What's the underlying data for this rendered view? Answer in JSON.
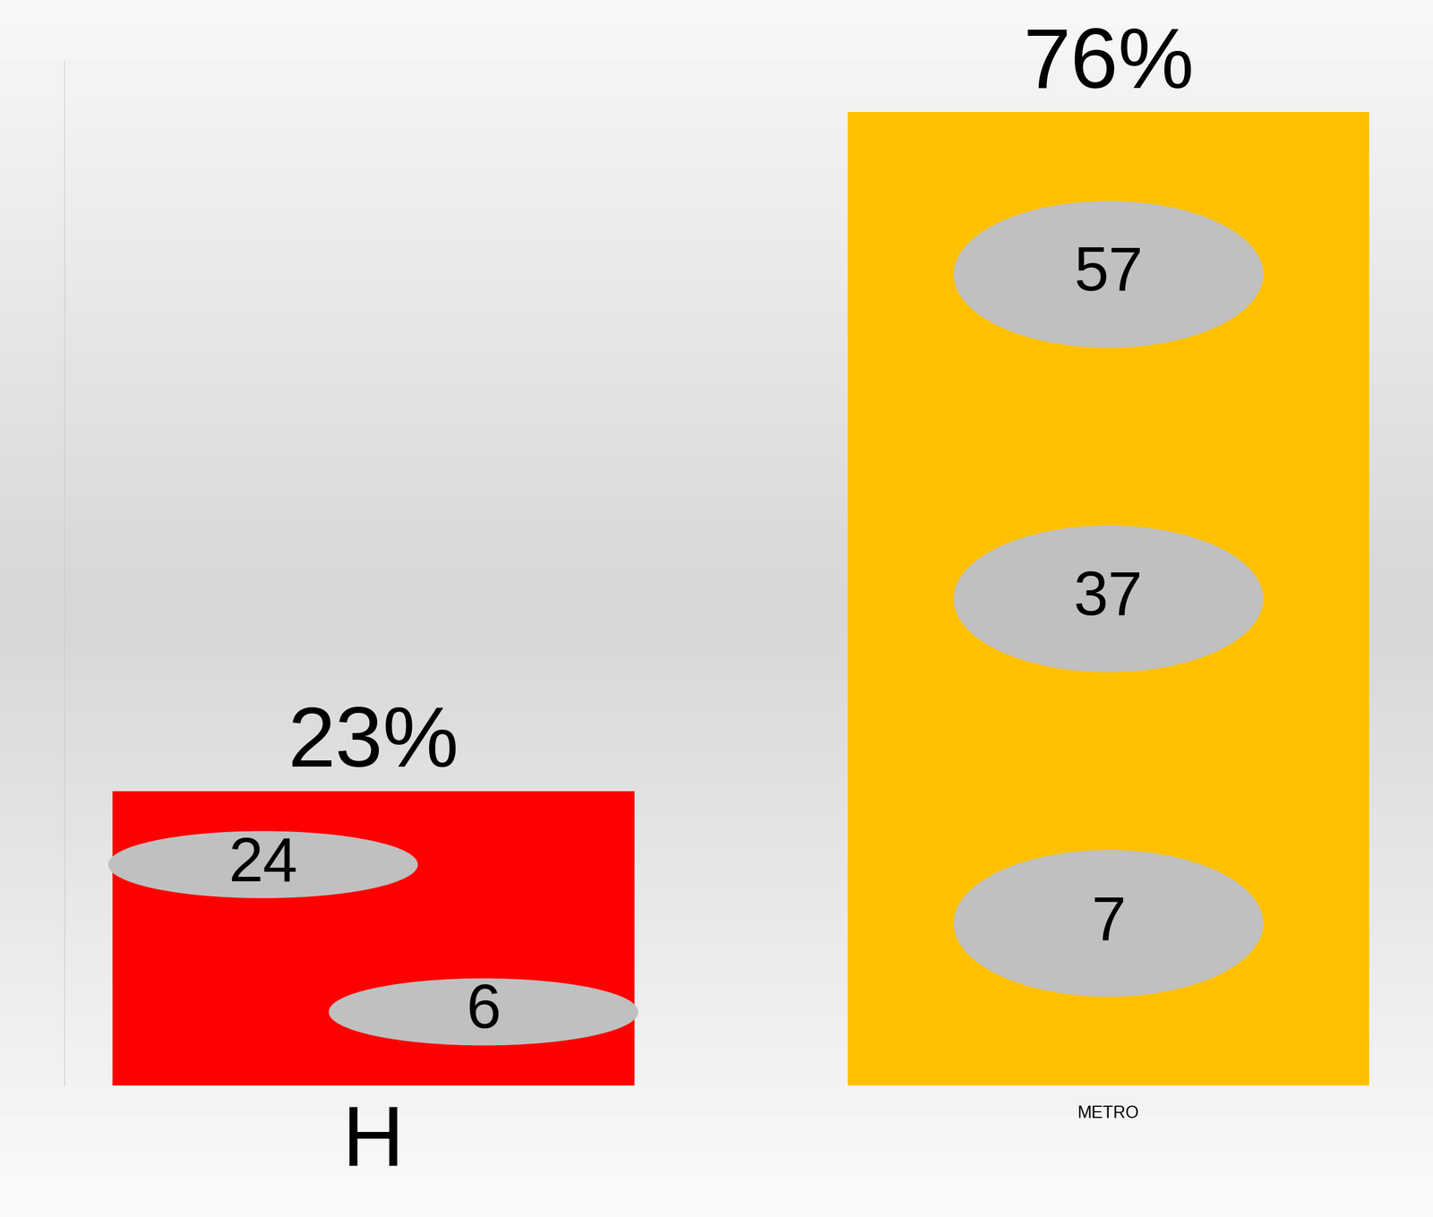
{
  "chart_data": {
    "type": "bar",
    "categories": [
      "H",
      "METRO"
    ],
    "values": [
      23,
      76
    ],
    "value_labels": [
      "23%",
      "76%"
    ],
    "colors": [
      "#ff0000",
      "#ffc000"
    ],
    "inner_values": [
      [
        24,
        6
      ],
      [
        57,
        37,
        7
      ]
    ],
    "ylim": [
      0,
      80
    ],
    "yticks": [],
    "data_labels": true,
    "tick_labels": "x",
    "grid": false
  }
}
